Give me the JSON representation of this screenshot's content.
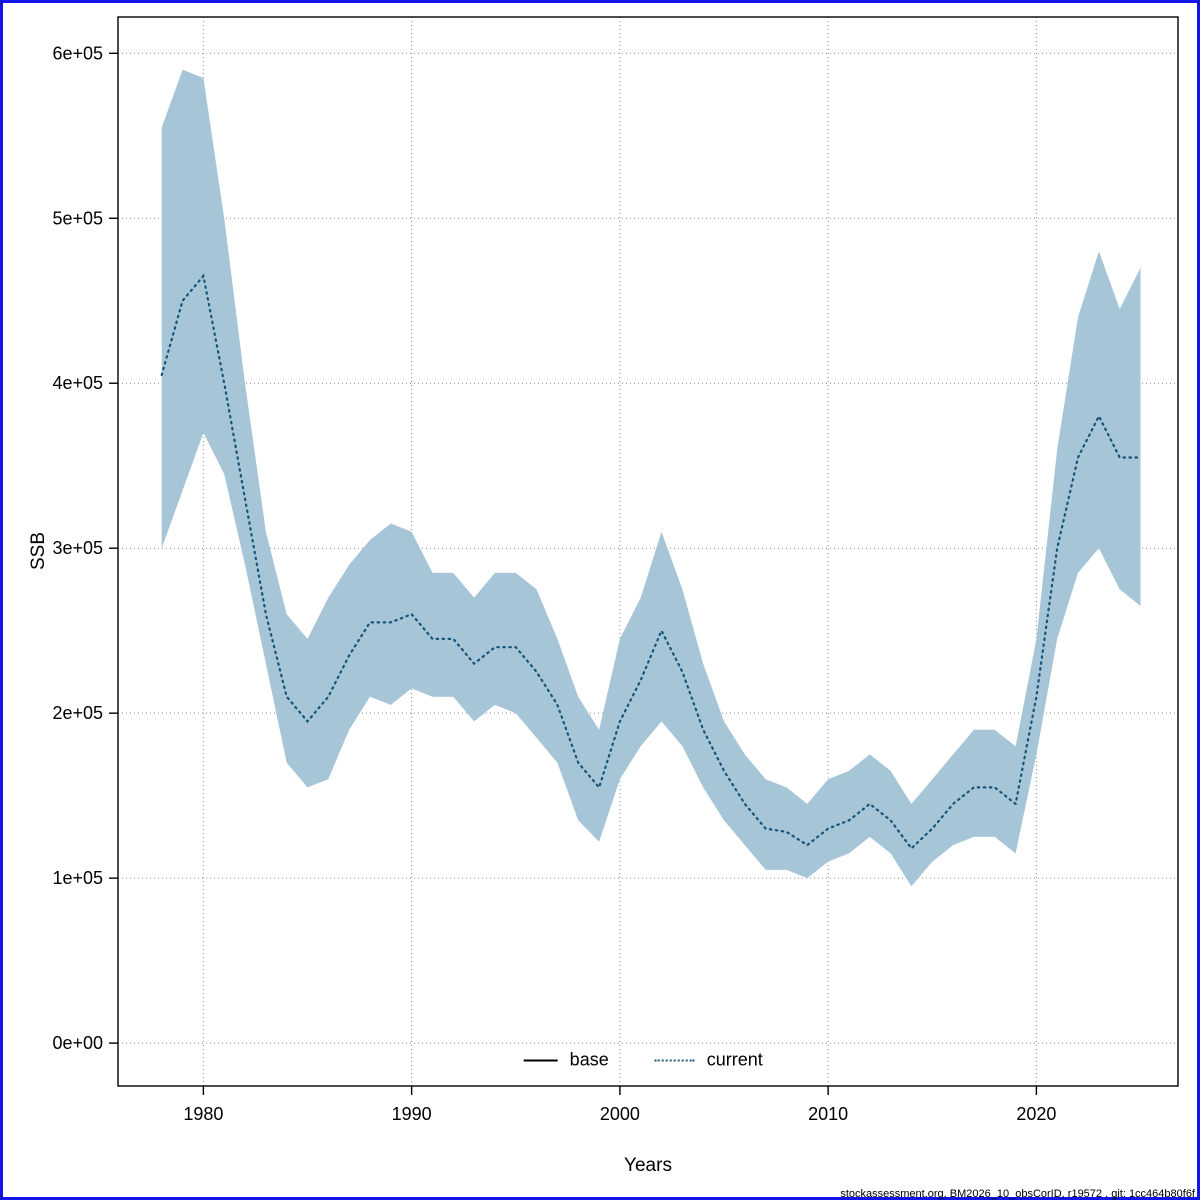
{
  "page": {
    "footer": "stockassessment.org, BM2026_10_obsCorID, r19572 , git: 1cc464b80f6f",
    "border_color": "#1414e6"
  },
  "chart_data": {
    "type": "line",
    "title": "",
    "xlabel": "Years",
    "ylabel": "SSB",
    "grid": true,
    "legend_position": "bottom-center",
    "xlim": [
      1975.9,
      2026.8
    ],
    "ylim": [
      -26000,
      622000
    ],
    "x_ticks": [
      1980,
      1990,
      2000,
      2010,
      2020
    ],
    "y_ticks": [
      0,
      100000,
      200000,
      300000,
      400000,
      500000,
      600000
    ],
    "y_tick_labels": [
      "0e+00",
      "1e+05",
      "2e+05",
      "3e+05",
      "4e+05",
      "5e+05",
      "6e+05"
    ],
    "band_color": "#a6c6d8",
    "line_color": "#17547a",
    "legend": [
      {
        "label": "base",
        "style": "solid",
        "color": "#000000"
      },
      {
        "label": "current",
        "style": "dotted",
        "color": "#17547a"
      }
    ],
    "x": [
      1978,
      1979,
      1980,
      1981,
      1982,
      1983,
      1984,
      1985,
      1986,
      1987,
      1988,
      1989,
      1990,
      1991,
      1992,
      1993,
      1994,
      1995,
      1996,
      1997,
      1998,
      1999,
      2000,
      2001,
      2002,
      2003,
      2004,
      2005,
      2006,
      2007,
      2008,
      2009,
      2010,
      2011,
      2012,
      2013,
      2014,
      2015,
      2016,
      2017,
      2018,
      2019,
      2020,
      2021,
      2022,
      2023,
      2024,
      2025
    ],
    "series": [
      {
        "name": "current",
        "values": [
          405000,
          450000,
          465000,
          400000,
          330000,
          260000,
          210000,
          195000,
          210000,
          235000,
          255000,
          255000,
          260000,
          245000,
          245000,
          230000,
          240000,
          240000,
          225000,
          205000,
          170000,
          155000,
          195000,
          220000,
          250000,
          225000,
          190000,
          165000,
          145000,
          130000,
          128000,
          120000,
          130000,
          135000,
          145000,
          135000,
          118000,
          130000,
          145000,
          155000,
          155000,
          145000,
          210000,
          300000,
          355000,
          380000,
          355000,
          355000
        ],
        "lower": [
          300000,
          335000,
          370000,
          345000,
          290000,
          230000,
          170000,
          155000,
          160000,
          190000,
          210000,
          205000,
          215000,
          210000,
          210000,
          195000,
          205000,
          200000,
          185000,
          170000,
          135000,
          122000,
          160000,
          180000,
          195000,
          180000,
          155000,
          135000,
          120000,
          105000,
          105000,
          100000,
          110000,
          115000,
          125000,
          115000,
          95000,
          110000,
          120000,
          125000,
          125000,
          115000,
          175000,
          245000,
          285000,
          300000,
          275000,
          265000
        ],
        "upper": [
          555000,
          590000,
          585000,
          500000,
          400000,
          310000,
          260000,
          245000,
          270000,
          290000,
          305000,
          315000,
          310000,
          285000,
          285000,
          270000,
          285000,
          285000,
          275000,
          245000,
          210000,
          190000,
          245000,
          270000,
          310000,
          275000,
          230000,
          195000,
          175000,
          160000,
          155000,
          145000,
          160000,
          165000,
          175000,
          165000,
          145000,
          160000,
          175000,
          190000,
          190000,
          180000,
          245000,
          360000,
          440000,
          480000,
          445000,
          470000
        ]
      }
    ]
  }
}
